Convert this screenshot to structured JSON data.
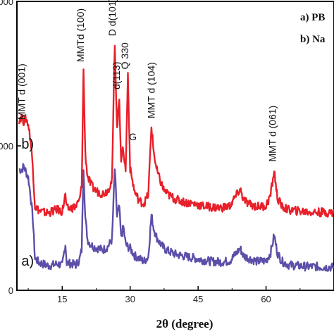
{
  "chart_data": {
    "type": "line",
    "xlabel": "2θ (degree)",
    "ylabel": "",
    "xlim": [
      5,
      75
    ],
    "ylim": [
      0,
      1000
    ],
    "x_ticks": [
      "15",
      "30",
      "45",
      "60"
    ],
    "y_ticks": [
      "0",
      "000",
      "000"
    ],
    "legend": [
      "a) PB",
      "b) Na"
    ],
    "series": [
      {
        "name": "a)",
        "color": "#5b4fa8",
        "x": [
          5.5,
          6,
          6.5,
          7,
          7.5,
          8,
          8.5,
          9,
          10,
          11,
          12,
          13,
          14,
          15,
          15.7,
          16,
          17,
          18,
          18.8,
          19.3,
          19.7,
          20.1,
          20.6,
          21.2,
          22,
          23,
          24,
          25,
          26,
          26.6,
          27.1,
          27.6,
          28,
          28.5,
          29,
          29.5,
          30,
          31,
          32,
          33,
          34,
          34.7,
          35.2,
          35.8,
          36.5,
          37.5,
          38.5,
          40,
          42,
          44,
          46,
          48,
          50,
          52,
          53.5,
          54.3,
          55,
          56,
          58,
          60,
          61,
          61.8,
          62.5,
          63.5,
          65,
          67,
          69,
          71,
          73,
          75
        ],
        "values": [
          420,
          415,
          430,
          410,
          390,
          330,
          250,
          110,
          95,
          90,
          85,
          88,
          92,
          85,
          160,
          95,
          92,
          88,
          105,
          140,
          430,
          250,
          175,
          160,
          150,
          145,
          140,
          150,
          175,
          420,
          255,
          290,
          180,
          220,
          160,
          150,
          145,
          120,
          110,
          100,
          115,
          260,
          215,
          185,
          165,
          145,
          135,
          125,
          118,
          112,
          105,
          100,
          98,
          102,
          130,
          145,
          120,
          112,
          100,
          102,
          130,
          190,
          130,
          100,
          88,
          85,
          82,
          82,
          80,
          80
        ]
      },
      {
        "name": "b)",
        "color": "#e8202a",
        "x": [
          5.5,
          6,
          6.5,
          7,
          7.5,
          8,
          8.5,
          9,
          10,
          11,
          12,
          13,
          14,
          15,
          15.7,
          16,
          17,
          18,
          18.8,
          19.3,
          19.7,
          20.1,
          20.6,
          21.2,
          22,
          23,
          24,
          25,
          26,
          26.6,
          27.1,
          27.6,
          28,
          28.5,
          29,
          29.5,
          30,
          31,
          32,
          33,
          34,
          34.7,
          35.2,
          35.8,
          36.5,
          37.5,
          38.5,
          40,
          42,
          44,
          46,
          48,
          50,
          52,
          53.5,
          54.3,
          55,
          56,
          58,
          60,
          61,
          61.8,
          62.5,
          63.5,
          65,
          67,
          69,
          71,
          73,
          75
        ],
        "values": [
          590,
          600,
          585,
          595,
          575,
          520,
          430,
          290,
          275,
          270,
          268,
          275,
          280,
          272,
          330,
          282,
          285,
          290,
          310,
          360,
          760,
          470,
          395,
          370,
          350,
          340,
          335,
          345,
          380,
          860,
          555,
          665,
          455,
          490,
          410,
          750,
          420,
          340,
          310,
          300,
          330,
          570,
          480,
          420,
          385,
          345,
          330,
          315,
          305,
          300,
          292,
          288,
          285,
          292,
          330,
          350,
          315,
          300,
          290,
          292,
          330,
          415,
          320,
          290,
          278,
          275,
          272,
          270,
          270,
          268
        ]
      }
    ],
    "annotations": [
      {
        "text": "MMT d (001)",
        "x": 6.8,
        "y": 590,
        "rotate": -90
      },
      {
        "text": "MMTd (100)",
        "x": 19.8,
        "y": 790,
        "rotate": -90
      },
      {
        "text": "D d(101)",
        "x": 26.8,
        "y": 880,
        "rotate": -90
      },
      {
        "text": "d(113)",
        "x": 27.7,
        "y": 695,
        "rotate": -90
      },
      {
        "text": "Q 330",
        "x": 29.6,
        "y": 765,
        "rotate": -90
      },
      {
        "text": "G",
        "x": 30.6,
        "y": 520,
        "rotate": 0
      },
      {
        "text": "MMT d (104)",
        "x": 35.4,
        "y": 595,
        "rotate": -90
      },
      {
        "text": "MMT d (061)",
        "x": 62.2,
        "y": 445,
        "rotate": -90
      }
    ],
    "series_tags": [
      {
        "text": "b)",
        "x": 6.0,
        "y": 490
      },
      {
        "text": "a)",
        "x": 6.0,
        "y": 85
      }
    ],
    "grid": false
  }
}
